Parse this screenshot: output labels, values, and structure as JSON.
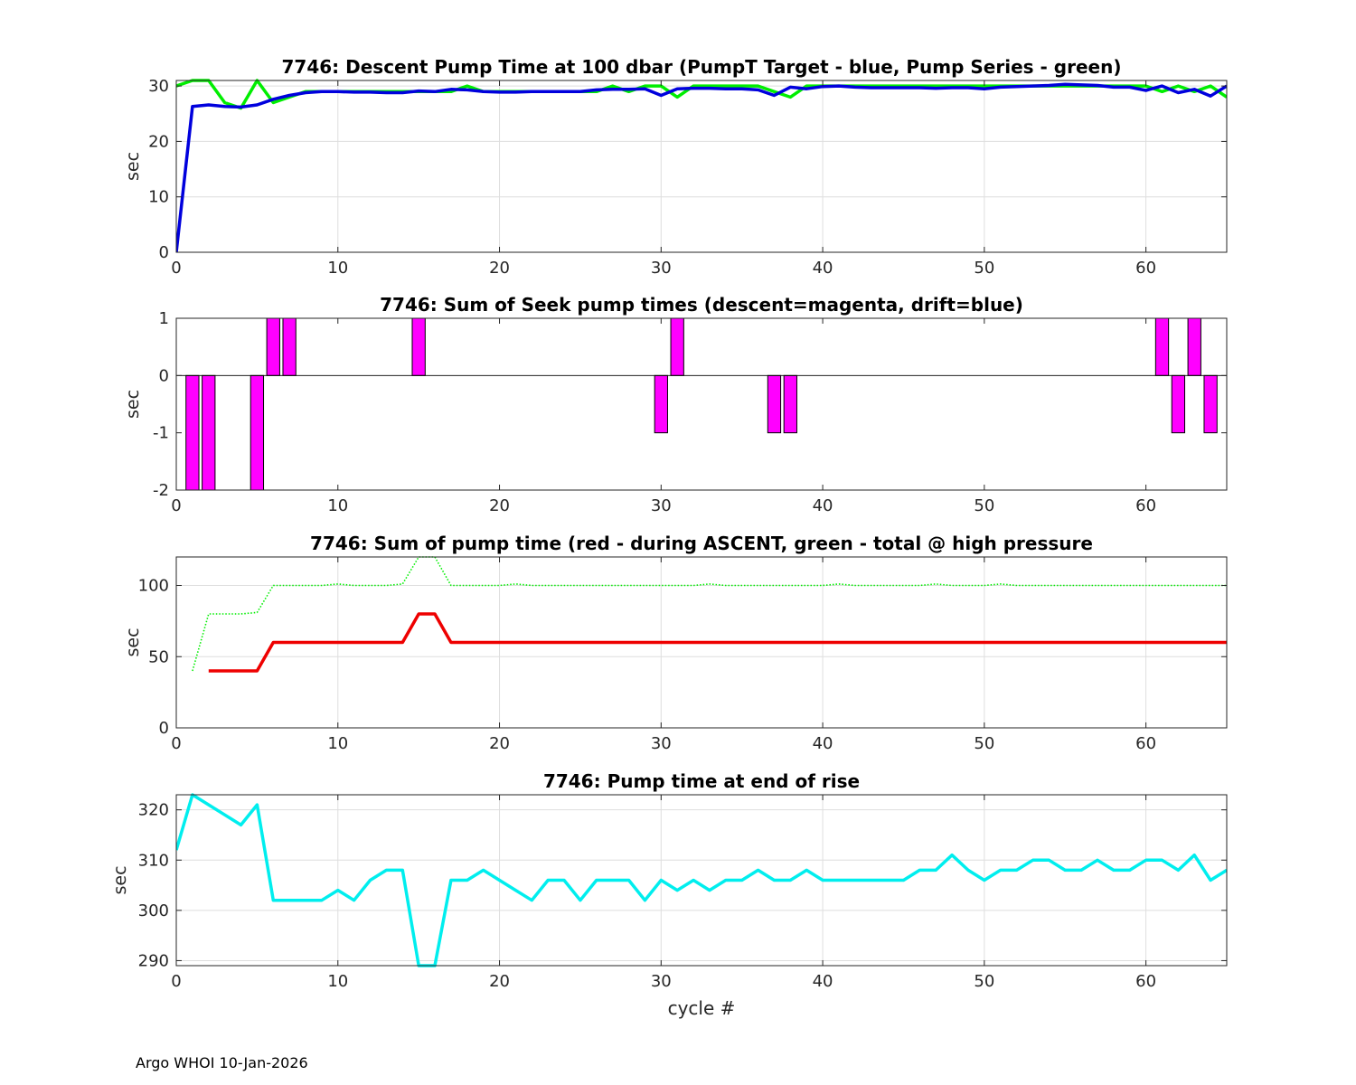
{
  "footer": "Argo WHOI 10-Jan-2026",
  "colors": {
    "green": "#00ee00",
    "blue": "#0000dd",
    "magenta": "#ff00ff",
    "red": "#ee0000",
    "cyan": "#00eeee",
    "grid": "#dedede",
    "axis": "#262626"
  },
  "chart_data": [
    {
      "type": "line",
      "title": "7746: Descent Pump Time at 100 dbar (PumpT Target - blue, Pump Series - green)",
      "xlabel": "",
      "ylabel": "sec",
      "xlim": [
        0,
        65
      ],
      "ylim": [
        0,
        31
      ],
      "xticks": [
        0,
        10,
        20,
        30,
        40,
        50,
        60
      ],
      "yticks": [
        0,
        10,
        20,
        30
      ],
      "grid": true,
      "series": [
        {
          "name": "Pump Series",
          "color": "green",
          "style": "solid",
          "x": [
            0,
            1,
            2,
            3,
            4,
            5,
            6,
            7,
            8,
            9,
            10,
            11,
            12,
            13,
            14,
            15,
            16,
            17,
            18,
            19,
            20,
            21,
            22,
            23,
            24,
            25,
            26,
            27,
            28,
            29,
            30,
            31,
            32,
            33,
            34,
            35,
            36,
            37,
            38,
            39,
            40,
            41,
            42,
            43,
            44,
            45,
            46,
            47,
            48,
            49,
            50,
            51,
            52,
            53,
            54,
            55,
            56,
            57,
            58,
            59,
            60,
            61,
            62,
            63,
            64,
            65
          ],
          "y": [
            30,
            31,
            31,
            27,
            26,
            31,
            27,
            28,
            29,
            29,
            29,
            29,
            29,
            29,
            29,
            29,
            29,
            29,
            30,
            29,
            29,
            29,
            29,
            29,
            29,
            29,
            29,
            30,
            29,
            30,
            30,
            28,
            30,
            30,
            30,
            30,
            30,
            29,
            28,
            30,
            30,
            30,
            30,
            30,
            30,
            30,
            30,
            30,
            30,
            30,
            30,
            30,
            30,
            30,
            30,
            30,
            30,
            30,
            30,
            30,
            30,
            29,
            30,
            29,
            30,
            28
          ]
        },
        {
          "name": "PumpT Target",
          "color": "blue",
          "style": "solid",
          "x": [
            0,
            1,
            2,
            3,
            4,
            5,
            6,
            7,
            8,
            9,
            10,
            11,
            12,
            13,
            14,
            15,
            16,
            17,
            18,
            19,
            20,
            21,
            22,
            23,
            24,
            25,
            26,
            27,
            28,
            29,
            30,
            31,
            32,
            33,
            34,
            35,
            36,
            37,
            38,
            39,
            40,
            41,
            42,
            43,
            44,
            45,
            46,
            47,
            48,
            49,
            50,
            51,
            52,
            53,
            54,
            55,
            56,
            57,
            58,
            59,
            60,
            61,
            62,
            63,
            64,
            65
          ],
          "y": [
            0,
            26.3,
            26.6,
            26.3,
            26.2,
            26.6,
            27.6,
            28.3,
            28.8,
            29,
            29,
            28.9,
            28.9,
            28.8,
            28.8,
            29.1,
            29,
            29.4,
            29.3,
            29,
            28.9,
            28.9,
            29,
            29,
            29,
            29,
            29.3,
            29.4,
            29.4,
            29.5,
            28.3,
            29.5,
            29.6,
            29.6,
            29.5,
            29.5,
            29.3,
            28.3,
            29.8,
            29.5,
            29.9,
            30,
            29.8,
            29.7,
            29.7,
            29.7,
            29.7,
            29.6,
            29.7,
            29.7,
            29.5,
            29.8,
            29.9,
            30,
            30.1,
            30.3,
            30.2,
            30.1,
            29.8,
            29.8,
            29.2,
            30,
            28.8,
            29.4,
            28.2,
            30
          ]
        }
      ]
    },
    {
      "type": "bar",
      "title": "7746: Sum of Seek pump times (descent=magenta, drift=blue)",
      "xlabel": "",
      "ylabel": "sec",
      "xlim": [
        0,
        65
      ],
      "ylim": [
        -2,
        1
      ],
      "xticks": [
        0,
        10,
        20,
        30,
        40,
        50,
        60
      ],
      "yticks": [
        -2,
        -1,
        0,
        1
      ],
      "grid": false,
      "series": [
        {
          "name": "descent",
          "color": "magenta",
          "x": [
            1,
            2,
            5,
            6,
            7,
            15,
            30,
            31,
            37,
            38,
            61,
            62,
            63,
            64
          ],
          "y": [
            -2,
            -2,
            -2,
            1,
            1,
            1,
            -1,
            1,
            -1,
            -1,
            1,
            -1,
            1,
            -1
          ]
        }
      ]
    },
    {
      "type": "line",
      "title": "7746: Sum of pump time (red - during ASCENT, green - total @ high pressure",
      "xlabel": "",
      "ylabel": "sec",
      "xlim": [
        0,
        65
      ],
      "ylim": [
        0,
        120
      ],
      "xticks": [
        0,
        10,
        20,
        30,
        40,
        50,
        60
      ],
      "yticks": [
        0,
        50,
        100
      ],
      "grid": true,
      "series": [
        {
          "name": "total @ high pressure",
          "color": "green",
          "style": "dotted",
          "x": [
            1,
            2,
            3,
            4,
            5,
            6,
            7,
            8,
            9,
            10,
            11,
            12,
            13,
            14,
            15,
            16,
            17,
            18,
            19,
            20,
            21,
            22,
            23,
            24,
            25,
            26,
            27,
            28,
            29,
            30,
            31,
            32,
            33,
            34,
            35,
            36,
            37,
            38,
            39,
            40,
            41,
            42,
            43,
            44,
            45,
            46,
            47,
            48,
            49,
            50,
            51,
            52,
            53,
            54,
            55,
            56,
            57,
            58,
            59,
            60,
            61,
            62,
            63,
            64,
            65
          ],
          "y": [
            40,
            80,
            80,
            80,
            81,
            100,
            100,
            100,
            100,
            101,
            100,
            100,
            100,
            101,
            120,
            120,
            100,
            100,
            100,
            100,
            101,
            100,
            100,
            100,
            100,
            100,
            100,
            100,
            100,
            100,
            100,
            100,
            101,
            100,
            100,
            100,
            100,
            100,
            100,
            100,
            101,
            100,
            100,
            100,
            100,
            100,
            101,
            100,
            100,
            100,
            101,
            100,
            100,
            100,
            100,
            100,
            100,
            100,
            100,
            100,
            100,
            100,
            100,
            100,
            100
          ]
        },
        {
          "name": "during ASCENT",
          "color": "red",
          "style": "solid",
          "x": [
            2,
            3,
            4,
            5,
            6,
            7,
            8,
            9,
            10,
            11,
            12,
            13,
            14,
            15,
            16,
            17,
            18,
            19,
            20,
            21,
            22,
            23,
            24,
            25,
            26,
            27,
            28,
            29,
            30,
            31,
            32,
            33,
            34,
            35,
            36,
            37,
            38,
            39,
            40,
            41,
            42,
            43,
            44,
            45,
            46,
            47,
            48,
            49,
            50,
            51,
            52,
            53,
            54,
            55,
            56,
            57,
            58,
            59,
            60,
            61,
            62,
            63,
            64,
            65
          ],
          "y": [
            40,
            40,
            40,
            40,
            60,
            60,
            60,
            60,
            60,
            60,
            60,
            60,
            60,
            80,
            80,
            60,
            60,
            60,
            60,
            60,
            60,
            60,
            60,
            60,
            60,
            60,
            60,
            60,
            60,
            60,
            60,
            60,
            60,
            60,
            60,
            60,
            60,
            60,
            60,
            60,
            60,
            60,
            60,
            60,
            60,
            60,
            60,
            60,
            60,
            60,
            60,
            60,
            60,
            60,
            60,
            60,
            60,
            60,
            60,
            60,
            60,
            60,
            60,
            60
          ]
        }
      ]
    },
    {
      "type": "line",
      "title": "7746: Pump time at end of rise",
      "xlabel": "cycle #",
      "ylabel": "sec",
      "xlim": [
        0,
        65
      ],
      "ylim": [
        289,
        323
      ],
      "xticks": [
        0,
        10,
        20,
        30,
        40,
        50,
        60
      ],
      "yticks": [
        290,
        300,
        310,
        320
      ],
      "grid": true,
      "series": [
        {
          "name": "pump time",
          "color": "cyan",
          "style": "solid",
          "x": [
            0,
            1,
            2,
            3,
            4,
            5,
            6,
            7,
            8,
            9,
            10,
            11,
            12,
            13,
            14,
            15,
            16,
            17,
            18,
            19,
            20,
            21,
            22,
            23,
            24,
            25,
            26,
            27,
            28,
            29,
            30,
            31,
            32,
            33,
            34,
            35,
            36,
            37,
            38,
            39,
            40,
            41,
            42,
            43,
            44,
            45,
            46,
            47,
            48,
            49,
            50,
            51,
            52,
            53,
            54,
            55,
            56,
            57,
            58,
            59,
            60,
            61,
            62,
            63,
            64,
            65
          ],
          "y": [
            312,
            323,
            321,
            319,
            317,
            321,
            302,
            302,
            302,
            302,
            304,
            302,
            306,
            308,
            308,
            289,
            289,
            306,
            306,
            308,
            306,
            304,
            302,
            306,
            306,
            302,
            306,
            306,
            306,
            302,
            306,
            304,
            306,
            304,
            306,
            306,
            308,
            306,
            306,
            308,
            306,
            306,
            306,
            306,
            306,
            306,
            308,
            308,
            311,
            308,
            306,
            308,
            308,
            310,
            310,
            308,
            308,
            310,
            308,
            308,
            310,
            310,
            308,
            311,
            306,
            308
          ]
        }
      ]
    }
  ]
}
